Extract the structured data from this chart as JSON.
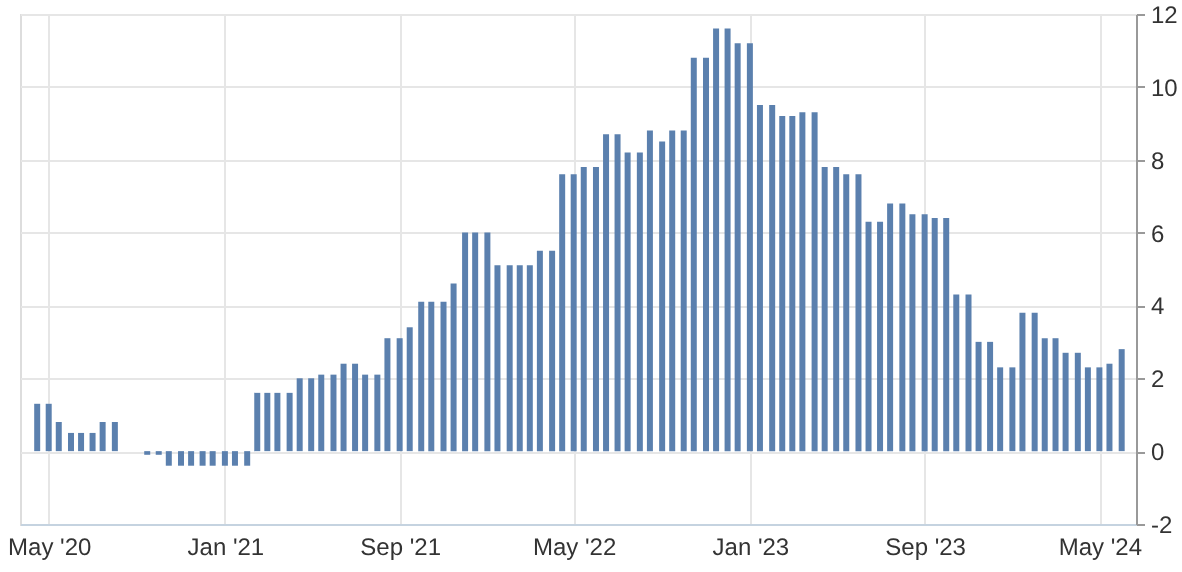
{
  "chart_data": {
    "type": "bar",
    "x": [
      "2020-04-15",
      "2020-05-01",
      "2020-05-15",
      "2020-06-01",
      "2020-06-15",
      "2020-07-01",
      "2020-07-15",
      "2020-08-01",
      "2020-08-15",
      "2020-09-01",
      "2020-09-15",
      "2020-10-01",
      "2020-10-15",
      "2020-11-01",
      "2020-11-15",
      "2020-12-01",
      "2020-12-15",
      "2021-01-01",
      "2021-01-15",
      "2021-02-01",
      "2021-02-15",
      "2021-03-01",
      "2021-03-15",
      "2021-04-01",
      "2021-04-15",
      "2021-05-01",
      "2021-05-15",
      "2021-06-01",
      "2021-06-15",
      "2021-07-01",
      "2021-07-15",
      "2021-08-01",
      "2021-08-15",
      "2021-09-01",
      "2021-09-15",
      "2021-10-01",
      "2021-10-15",
      "2021-11-01",
      "2021-11-15",
      "2021-12-01",
      "2021-12-15",
      "2022-01-01",
      "2022-01-15",
      "2022-02-01",
      "2022-02-15",
      "2022-03-01",
      "2022-03-15",
      "2022-04-01",
      "2022-04-15",
      "2022-05-01",
      "2022-05-15",
      "2022-06-01",
      "2022-06-15",
      "2022-07-01",
      "2022-07-15",
      "2022-08-01",
      "2022-08-15",
      "2022-09-01",
      "2022-09-15",
      "2022-10-01",
      "2022-10-15",
      "2022-11-01",
      "2022-11-15",
      "2022-12-01",
      "2022-12-15",
      "2023-01-01",
      "2023-01-15",
      "2023-02-01",
      "2023-02-15",
      "2023-03-01",
      "2023-03-15",
      "2023-04-01",
      "2023-04-15",
      "2023-05-01",
      "2023-05-15",
      "2023-06-01",
      "2023-06-15",
      "2023-07-01",
      "2023-07-15",
      "2023-08-01",
      "2023-08-15",
      "2023-09-01",
      "2023-09-15",
      "2023-10-01",
      "2023-10-15",
      "2023-11-01",
      "2023-11-15",
      "2023-12-01",
      "2023-12-15",
      "2024-01-01",
      "2024-01-15",
      "2024-02-01",
      "2024-02-15",
      "2024-03-01",
      "2024-03-15",
      "2024-04-01",
      "2024-04-15",
      "2024-05-01",
      "2024-05-15",
      "2024-06-01"
    ],
    "values": [
      1.3,
      1.3,
      0.8,
      0.5,
      0.5,
      0.5,
      0.8,
      0.8,
      0.0,
      0.0,
      -0.1,
      -0.1,
      -0.4,
      -0.4,
      -0.4,
      -0.4,
      -0.4,
      -0.4,
      -0.4,
      -0.4,
      1.6,
      1.6,
      1.6,
      1.6,
      2.0,
      2.0,
      2.1,
      2.1,
      2.4,
      2.4,
      2.1,
      2.1,
      3.1,
      3.1,
      3.4,
      4.1,
      4.1,
      4.1,
      4.6,
      6.0,
      6.0,
      6.0,
      5.1,
      5.1,
      5.1,
      5.1,
      5.5,
      5.5,
      7.6,
      7.6,
      7.8,
      7.8,
      8.7,
      8.7,
      8.2,
      8.2,
      8.8,
      8.5,
      8.8,
      8.8,
      10.8,
      10.8,
      11.6,
      11.6,
      11.2,
      11.2,
      9.5,
      9.5,
      9.2,
      9.2,
      9.3,
      9.3,
      7.8,
      7.8,
      7.6,
      7.6,
      6.3,
      6.3,
      6.8,
      6.8,
      6.5,
      6.5,
      6.4,
      6.4,
      4.3,
      4.3,
      3.0,
      3.0,
      2.3,
      2.3,
      3.8,
      3.8,
      3.1,
      3.1,
      2.7,
      2.7,
      2.3,
      2.3,
      2.4,
      2.8
    ],
    "color": "#5b80ae",
    "xlim": [
      "2020-04-05",
      "2024-06-07"
    ],
    "xticks": [
      {
        "value": "2020-05-01",
        "label": "May '20"
      },
      {
        "value": "2021-01-01",
        "label": "Jan '21"
      },
      {
        "value": "2021-09-01",
        "label": "Sep '21"
      },
      {
        "value": "2022-05-01",
        "label": "May '22"
      },
      {
        "value": "2023-01-01",
        "label": "Jan '23"
      },
      {
        "value": "2023-09-01",
        "label": "Sep '23"
      },
      {
        "value": "2024-05-01",
        "label": "May '24"
      }
    ],
    "ylim": [
      -2,
      12
    ],
    "yticks": [
      -2,
      0,
      2,
      4,
      6,
      8,
      10,
      12
    ],
    "grid": true
  }
}
